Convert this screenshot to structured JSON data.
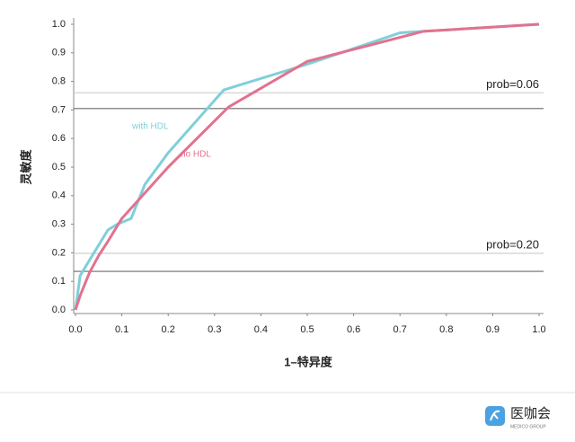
{
  "chart_data": {
    "type": "line",
    "x_label": "1–特异度",
    "y_label": "灵敏度",
    "xlim": [
      0,
      1
    ],
    "ylim": [
      0,
      1
    ],
    "xticks": [
      {
        "value": 0,
        "label": "0.0"
      },
      0.1,
      0.2,
      0.3,
      0.4,
      0.5,
      0.6,
      0.7,
      0.8,
      0.9,
      {
        "value": 1,
        "label": "1.0"
      }
    ],
    "yticks": [
      {
        "value": 0,
        "label": "0.0"
      },
      0.1,
      0.2,
      0.3,
      0.4,
      0.5,
      0.6,
      0.7,
      0.8,
      0.9,
      {
        "value": 1,
        "label": "1.0"
      }
    ],
    "grid": false,
    "series": [
      {
        "name": "with HDL",
        "color": "#7fcfd9",
        "x": [
          0,
          0.01,
          0.04,
          0.07,
          0.09,
          0.12,
          0.15,
          0.2,
          0.32,
          0.5,
          0.7,
          0.75,
          1
        ],
        "values": [
          0,
          0.12,
          0.2,
          0.28,
          0.3,
          0.32,
          0.44,
          0.55,
          0.77,
          0.86,
          0.97,
          0.975,
          1
        ]
      },
      {
        "name": "no HDL",
        "color": "#e2728f",
        "x": [
          0,
          0.01,
          0.03,
          0.05,
          0.07,
          0.1,
          0.15,
          0.2,
          0.33,
          0.5,
          0.75,
          1
        ],
        "values": [
          0,
          0.05,
          0.13,
          0.19,
          0.24,
          0.32,
          0.41,
          0.5,
          0.71,
          0.87,
          0.975,
          1
        ]
      }
    ],
    "reference_lines": [
      {
        "value": 0.76,
        "color": "#cfcfcf"
      },
      {
        "value": 0.705,
        "color": "#6a6a6a"
      },
      {
        "value": 0.198,
        "color": "#cfcfcf"
      },
      {
        "value": 0.135,
        "color": "#6a6a6a"
      }
    ],
    "annotations": [
      "prob=0.06",
      "prob=0.20"
    ]
  },
  "footer": {
    "brand": "医咖会",
    "sub": "MEDICO GROUP"
  }
}
